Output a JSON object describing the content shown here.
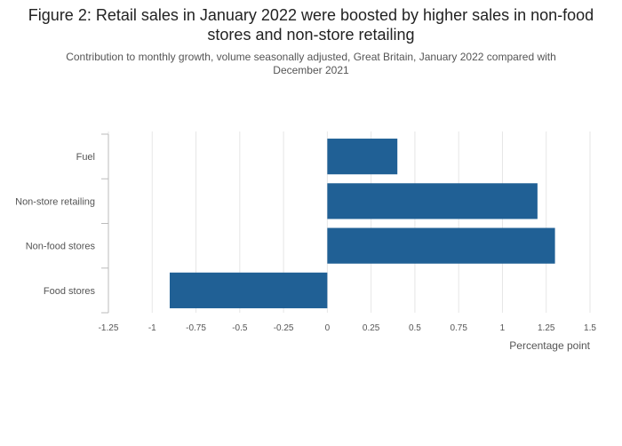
{
  "chart_data": {
    "type": "bar",
    "orientation": "horizontal",
    "title": "Figure 2: Retail sales in January 2022 were boosted by higher sales in non-food stores and non-store retailing",
    "subtitle": "Contribution to monthly growth, volume seasonally adjusted, Great Britain, January 2022 compared with December 2021",
    "categories": [
      "Fuel",
      "Non-store retailing",
      "Non-food stores",
      "Food stores"
    ],
    "values": [
      0.4,
      1.2,
      1.3,
      -0.9
    ],
    "xlabel": "Percentage point",
    "ylabel": "",
    "xlim": [
      -1.25,
      1.5
    ],
    "xticks": [
      -1.25,
      -1,
      -0.75,
      -0.5,
      -0.25,
      0,
      0.25,
      0.5,
      0.75,
      1,
      1.25,
      1.5
    ],
    "xtick_labels": [
      "-1.25",
      "-1",
      "-0.75",
      "-0.5",
      "-0.25",
      "0",
      "0.25",
      "0.5",
      "0.75",
      "1",
      "1.25",
      "1.5"
    ],
    "grid": true,
    "legend": "none",
    "colors": {
      "bar": "#206095",
      "grid": "#e6e6e6",
      "axis": "#bbbbbb",
      "tick_text": "#555555"
    }
  }
}
